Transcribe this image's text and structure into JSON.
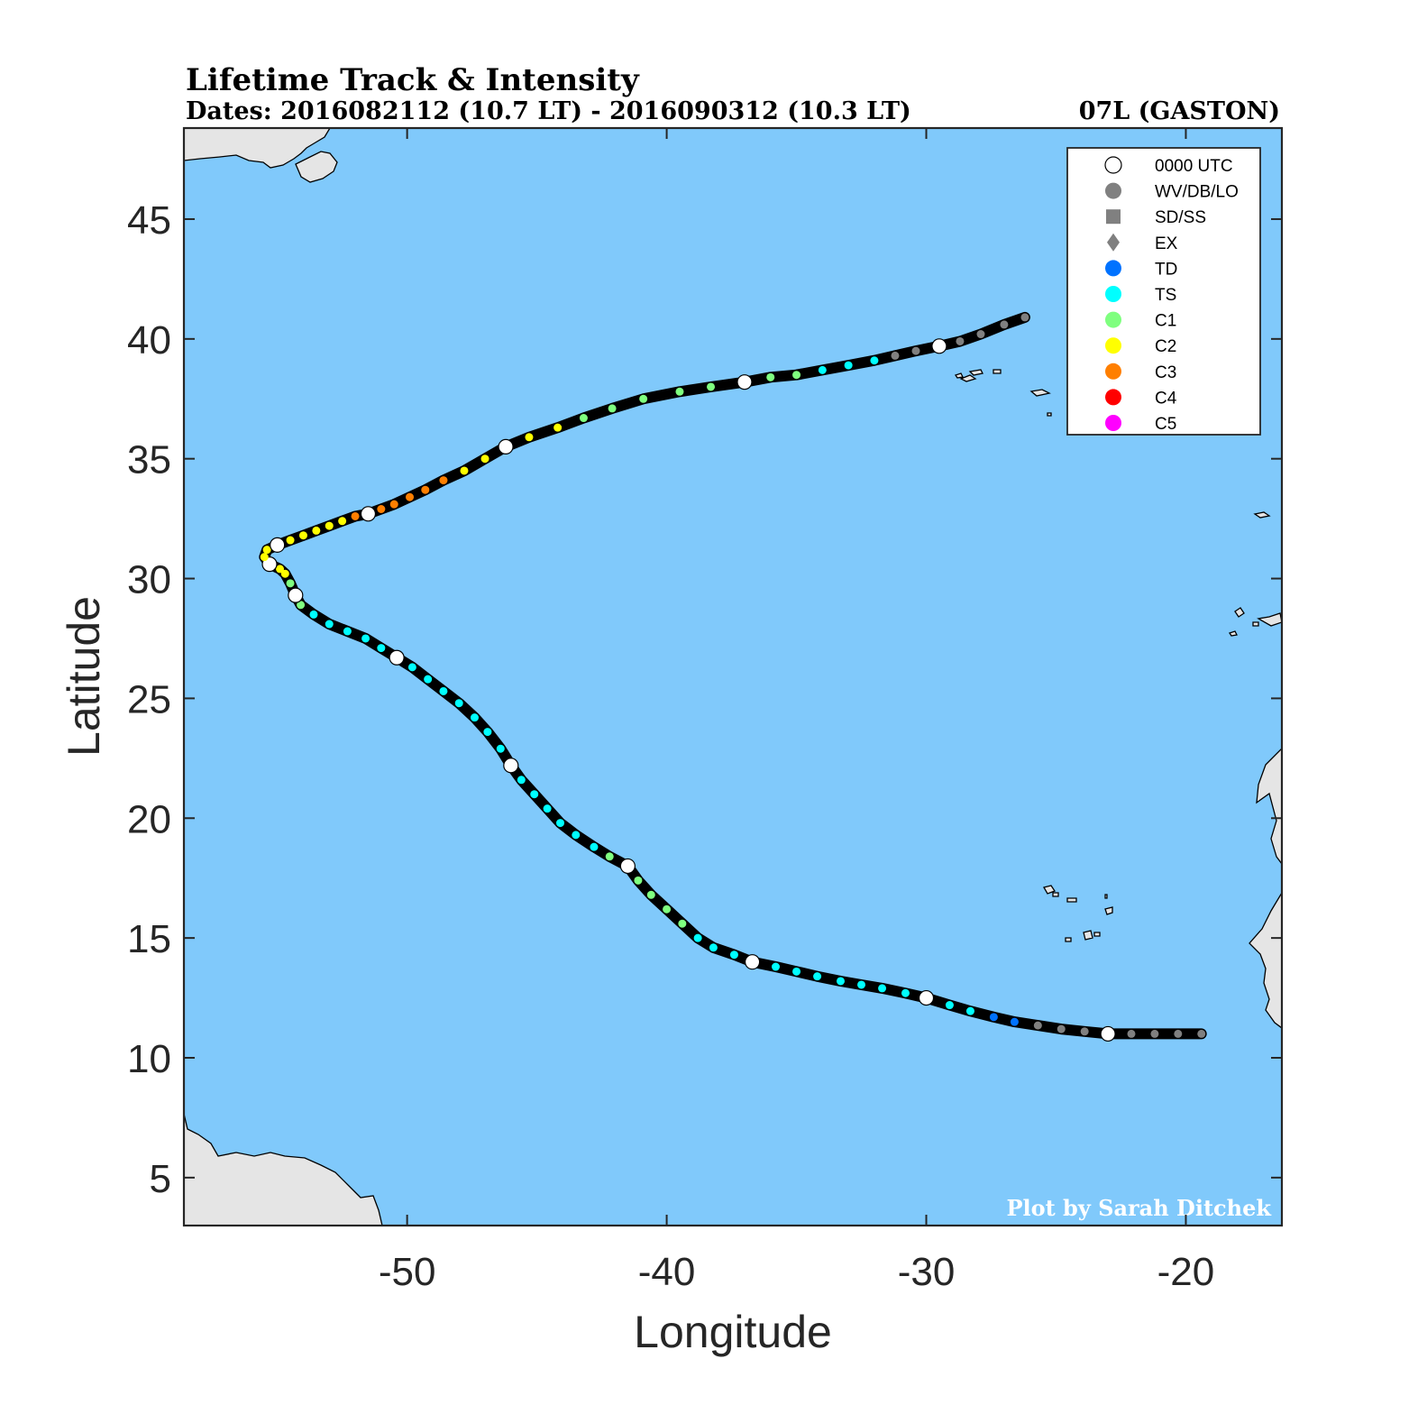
{
  "title": "Lifetime Track & Intensity",
  "subtitle_dates": "Dates: 2016082112 (10.7 LT) - 2016090312 (10.3 LT)",
  "storm_id": "07L (GASTON)",
  "credit": "Plot by Sarah Ditchek",
  "colors": {
    "ocean": "#80c9fb",
    "land": "#e5e5e5",
    "track": "#000000",
    "WV": "#808080",
    "TD": "#0072ff",
    "TS": "#00ffff",
    "C1": "#7fff7f",
    "C2": "#ffff00",
    "C3": "#ff7f00",
    "C4": "#ff0000",
    "C5": "#ff00ff"
  },
  "legend": [
    {
      "label": "0000 UTC",
      "symbol": "circle-open",
      "color": "#ffffff"
    },
    {
      "label": "WV/DB/LO",
      "symbol": "circle",
      "color": "#808080"
    },
    {
      "label": "SD/SS",
      "symbol": "square",
      "color": "#808080"
    },
    {
      "label": "EX",
      "symbol": "diamond",
      "color": "#808080"
    },
    {
      "label": "TD",
      "symbol": "circle",
      "color": "#0072ff"
    },
    {
      "label": "TS",
      "symbol": "circle",
      "color": "#00ffff"
    },
    {
      "label": "C1",
      "symbol": "circle",
      "color": "#7fff7f"
    },
    {
      "label": "C2",
      "symbol": "circle",
      "color": "#ffff00"
    },
    {
      "label": "C3",
      "symbol": "circle",
      "color": "#ff7f00"
    },
    {
      "label": "C4",
      "symbol": "circle",
      "color": "#ff0000"
    },
    {
      "label": "C5",
      "symbol": "circle",
      "color": "#ff00ff"
    }
  ],
  "chart_data": {
    "type": "scatter",
    "xlabel": "Longitude",
    "ylabel": "Latitude",
    "xlim": [
      -58.6,
      -16.3
    ],
    "ylim": [
      3.0,
      48.8
    ],
    "xticks": [
      -50,
      -40,
      -30,
      -20
    ],
    "yticks": [
      5,
      10,
      15,
      20,
      25,
      30,
      35,
      40,
      45
    ],
    "track": [
      {
        "lon": -19.4,
        "lat": 11.0,
        "cat": "WV"
      },
      {
        "lon": -20.3,
        "lat": 11.0,
        "cat": "WV"
      },
      {
        "lon": -21.2,
        "lat": 11.0,
        "cat": "WV"
      },
      {
        "lon": -22.1,
        "lat": 11.0,
        "cat": "WV"
      },
      {
        "lon": -23.0,
        "lat": 11.0,
        "cat": "WV",
        "utc0": true
      },
      {
        "lon": -23.9,
        "lat": 11.1,
        "cat": "WV"
      },
      {
        "lon": -24.8,
        "lat": 11.2,
        "cat": "WV"
      },
      {
        "lon": -25.7,
        "lat": 11.35,
        "cat": "WV"
      },
      {
        "lon": -26.6,
        "lat": 11.5,
        "cat": "TD"
      },
      {
        "lon": -27.4,
        "lat": 11.7,
        "cat": "TD"
      },
      {
        "lon": -28.3,
        "lat": 11.95,
        "cat": "TS"
      },
      {
        "lon": -29.1,
        "lat": 12.2,
        "cat": "TS"
      },
      {
        "lon": -30.0,
        "lat": 12.5,
        "cat": "TS",
        "utc0": true
      },
      {
        "lon": -30.8,
        "lat": 12.7,
        "cat": "TS"
      },
      {
        "lon": -31.7,
        "lat": 12.9,
        "cat": "TS"
      },
      {
        "lon": -32.5,
        "lat": 13.05,
        "cat": "TS"
      },
      {
        "lon": -33.3,
        "lat": 13.2,
        "cat": "TS"
      },
      {
        "lon": -34.2,
        "lat": 13.4,
        "cat": "TS"
      },
      {
        "lon": -35.0,
        "lat": 13.6,
        "cat": "TS"
      },
      {
        "lon": -35.8,
        "lat": 13.8,
        "cat": "TS"
      },
      {
        "lon": -36.7,
        "lat": 14.0,
        "cat": "TS",
        "utc0": true
      },
      {
        "lon": -37.4,
        "lat": 14.3,
        "cat": "TS"
      },
      {
        "lon": -38.2,
        "lat": 14.6,
        "cat": "TS"
      },
      {
        "lon": -38.8,
        "lat": 15.0,
        "cat": "TS"
      },
      {
        "lon": -39.4,
        "lat": 15.6,
        "cat": "C1"
      },
      {
        "lon": -40.0,
        "lat": 16.2,
        "cat": "C1"
      },
      {
        "lon": -40.6,
        "lat": 16.8,
        "cat": "C1"
      },
      {
        "lon": -41.1,
        "lat": 17.4,
        "cat": "C1"
      },
      {
        "lon": -41.5,
        "lat": 18.0,
        "cat": "C1",
        "utc0": true
      },
      {
        "lon": -42.2,
        "lat": 18.4,
        "cat": "C1"
      },
      {
        "lon": -42.8,
        "lat": 18.8,
        "cat": "TS"
      },
      {
        "lon": -43.5,
        "lat": 19.3,
        "cat": "TS"
      },
      {
        "lon": -44.1,
        "lat": 19.8,
        "cat": "TS"
      },
      {
        "lon": -44.6,
        "lat": 20.4,
        "cat": "TS"
      },
      {
        "lon": -45.1,
        "lat": 21.0,
        "cat": "TS"
      },
      {
        "lon": -45.6,
        "lat": 21.6,
        "cat": "TS"
      },
      {
        "lon": -46.0,
        "lat": 22.2,
        "cat": "TS",
        "utc0": true
      },
      {
        "lon": -46.4,
        "lat": 22.9,
        "cat": "TS"
      },
      {
        "lon": -46.9,
        "lat": 23.6,
        "cat": "TS"
      },
      {
        "lon": -47.4,
        "lat": 24.2,
        "cat": "TS"
      },
      {
        "lon": -48.0,
        "lat": 24.8,
        "cat": "TS"
      },
      {
        "lon": -48.6,
        "lat": 25.3,
        "cat": "TS"
      },
      {
        "lon": -49.2,
        "lat": 25.8,
        "cat": "TS"
      },
      {
        "lon": -49.8,
        "lat": 26.3,
        "cat": "TS"
      },
      {
        "lon": -50.4,
        "lat": 26.7,
        "cat": "TS",
        "utc0": true
      },
      {
        "lon": -51.0,
        "lat": 27.1,
        "cat": "TS"
      },
      {
        "lon": -51.6,
        "lat": 27.5,
        "cat": "TS"
      },
      {
        "lon": -52.3,
        "lat": 27.8,
        "cat": "TS"
      },
      {
        "lon": -53.0,
        "lat": 28.1,
        "cat": "TS"
      },
      {
        "lon": -53.6,
        "lat": 28.5,
        "cat": "TS"
      },
      {
        "lon": -54.1,
        "lat": 28.9,
        "cat": "C1"
      },
      {
        "lon": -54.3,
        "lat": 29.3,
        "cat": "TS",
        "utc0": true
      },
      {
        "lon": -54.5,
        "lat": 29.8,
        "cat": "C1"
      },
      {
        "lon": -54.7,
        "lat": 30.2,
        "cat": "C2"
      },
      {
        "lon": -54.9,
        "lat": 30.4,
        "cat": "C2"
      },
      {
        "lon": -55.3,
        "lat": 30.6,
        "cat": "C2",
        "utc0": true
      },
      {
        "lon": -55.5,
        "lat": 30.9,
        "cat": "C2"
      },
      {
        "lon": -55.4,
        "lat": 31.2,
        "cat": "C2"
      },
      {
        "lon": -55.0,
        "lat": 31.4,
        "cat": "C2",
        "utc0": true
      },
      {
        "lon": -54.5,
        "lat": 31.6,
        "cat": "C2"
      },
      {
        "lon": -54.0,
        "lat": 31.8,
        "cat": "C2"
      },
      {
        "lon": -53.5,
        "lat": 32.0,
        "cat": "C2"
      },
      {
        "lon": -53.0,
        "lat": 32.2,
        "cat": "C2"
      },
      {
        "lon": -52.5,
        "lat": 32.4,
        "cat": "C2"
      },
      {
        "lon": -52.0,
        "lat": 32.6,
        "cat": "C3"
      },
      {
        "lon": -51.5,
        "lat": 32.7,
        "cat": "C2",
        "utc0": true
      },
      {
        "lon": -51.0,
        "lat": 32.9,
        "cat": "C3"
      },
      {
        "lon": -50.5,
        "lat": 33.1,
        "cat": "C3"
      },
      {
        "lon": -49.9,
        "lat": 33.4,
        "cat": "C3"
      },
      {
        "lon": -49.3,
        "lat": 33.7,
        "cat": "C3"
      },
      {
        "lon": -48.6,
        "lat": 34.1,
        "cat": "C3"
      },
      {
        "lon": -47.8,
        "lat": 34.5,
        "cat": "C2"
      },
      {
        "lon": -47.0,
        "lat": 35.0,
        "cat": "C2"
      },
      {
        "lon": -46.2,
        "lat": 35.5,
        "cat": "C2",
        "utc0": true
      },
      {
        "lon": -45.3,
        "lat": 35.9,
        "cat": "C2"
      },
      {
        "lon": -44.2,
        "lat": 36.3,
        "cat": "C2"
      },
      {
        "lon": -43.2,
        "lat": 36.7,
        "cat": "C1"
      },
      {
        "lon": -42.1,
        "lat": 37.1,
        "cat": "C1"
      },
      {
        "lon": -40.9,
        "lat": 37.5,
        "cat": "C1"
      },
      {
        "lon": -39.5,
        "lat": 37.8,
        "cat": "C1"
      },
      {
        "lon": -38.3,
        "lat": 38.0,
        "cat": "C1"
      },
      {
        "lon": -37.0,
        "lat": 38.2,
        "cat": "C1",
        "utc0": true
      },
      {
        "lon": -36.0,
        "lat": 38.4,
        "cat": "C1"
      },
      {
        "lon": -35.0,
        "lat": 38.5,
        "cat": "C1"
      },
      {
        "lon": -34.0,
        "lat": 38.7,
        "cat": "TS"
      },
      {
        "lon": -33.0,
        "lat": 38.9,
        "cat": "TS"
      },
      {
        "lon": -32.0,
        "lat": 39.1,
        "cat": "TS"
      },
      {
        "lon": -31.2,
        "lat": 39.3,
        "cat": "WV"
      },
      {
        "lon": -30.4,
        "lat": 39.5,
        "cat": "WV"
      },
      {
        "lon": -29.5,
        "lat": 39.7,
        "cat": "WV",
        "utc0": true
      },
      {
        "lon": -28.7,
        "lat": 39.9,
        "cat": "WV"
      },
      {
        "lon": -27.9,
        "lat": 40.2,
        "cat": "WV"
      },
      {
        "lon": -27.0,
        "lat": 40.6,
        "cat": "WV"
      },
      {
        "lon": -26.2,
        "lat": 40.9,
        "cat": "WV"
      }
    ]
  }
}
